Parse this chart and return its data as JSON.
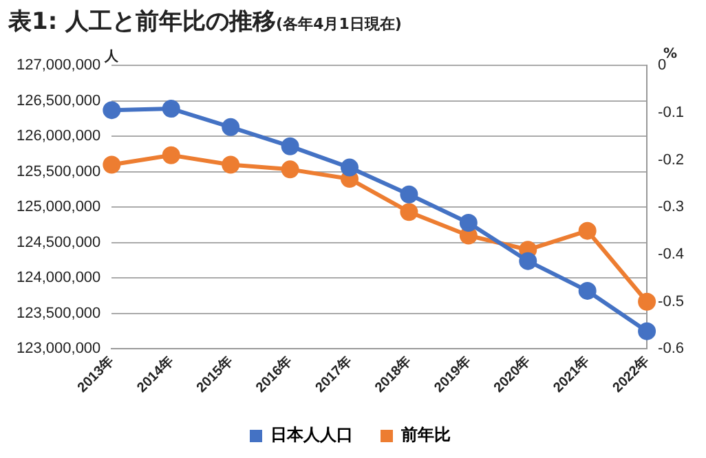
{
  "chart_data": {
    "type": "line",
    "title": "表1: 人工と前年比の推移",
    "subtitle": "(各年4月1日現在)",
    "ylabel": "人",
    "y2label": "%",
    "categories": [
      "2013年",
      "2014年",
      "2015年",
      "2016年",
      "2017年",
      "2018年",
      "2019年",
      "2020年",
      "2021年",
      "2022年"
    ],
    "series": [
      {
        "name": "日本人人口",
        "color": "#4472c4",
        "values": [
          126370000,
          126390000,
          126130000,
          125860000,
          125560000,
          125180000,
          124780000,
          124240000,
          123820000,
          123250000
        ]
      },
      {
        "name": "前年比",
        "color": "#ed7d31",
        "axis": "y2",
        "values": [
          -0.21,
          -0.19,
          -0.21,
          -0.22,
          -0.24,
          -0.31,
          -0.36,
          -0.39,
          -0.35,
          -0.5
        ]
      }
    ],
    "ylim": [
      123000000,
      127000000
    ],
    "yticks": [
      {
        "value": 123000000,
        "label": "123,000,000"
      },
      {
        "value": 123500000,
        "label": "123,500,000"
      },
      {
        "value": 124000000,
        "label": "124,000,000"
      },
      {
        "value": 124500000,
        "label": "124,500,000"
      },
      {
        "value": 125000000,
        "label": "125,000,000"
      },
      {
        "value": 125500000,
        "label": "125,500,000"
      },
      {
        "value": 126000000,
        "label": "126,000,000"
      },
      {
        "value": 126500000,
        "label": "126,500,000"
      },
      {
        "value": 127000000,
        "label": "127,000,000"
      }
    ],
    "y2lim": [
      -0.6,
      0
    ],
    "y2ticks": [
      -0.6,
      -0.5,
      -0.4,
      -0.3,
      -0.2,
      -0.1,
      0
    ],
    "grid": "y",
    "legend": "bottom",
    "marker": "circle"
  }
}
